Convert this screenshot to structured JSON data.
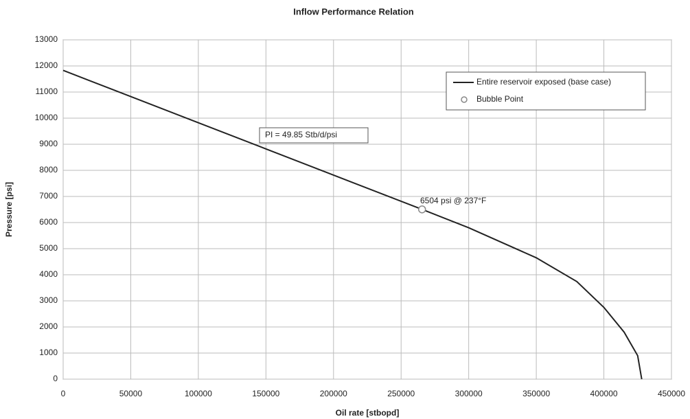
{
  "chart_data": {
    "type": "line",
    "title": "Inflow Performance Relation",
    "x_label": "Oil rate [stbopd]",
    "y_label": "Pressure [psi]",
    "series": [
      {
        "name": "Entire reservoir exposed (base case)",
        "color": "#222222",
        "kind": "line",
        "x": [
          0,
          50000,
          100000,
          150000,
          200000,
          265500,
          300000,
          350000,
          380000,
          400000,
          415000,
          425000,
          428000
        ],
        "values": [
          11830,
          10827,
          9824,
          8821,
          7818,
          6504,
          5800,
          4650,
          3740,
          2750,
          1800,
          900,
          0
        ]
      },
      {
        "name": "Bubble Point",
        "color": "#888888",
        "kind": "marker",
        "x": [
          265500
        ],
        "values": [
          6504
        ]
      }
    ],
    "annotations": [
      "PI = 49.85  Stb/d/psi",
      "6504 psi @ 237°F"
    ],
    "xlim": [
      0,
      450000
    ],
    "xticks": [
      0,
      50000,
      100000,
      150000,
      200000,
      250000,
      300000,
      350000,
      400000,
      450000
    ],
    "ylim": [
      0,
      13000
    ],
    "yticks": [
      0,
      1000,
      2000,
      3000,
      4000,
      5000,
      6000,
      7000,
      8000,
      9000,
      10000,
      11000,
      12000,
      13000
    ],
    "grid": true,
    "legend": "upper right"
  }
}
